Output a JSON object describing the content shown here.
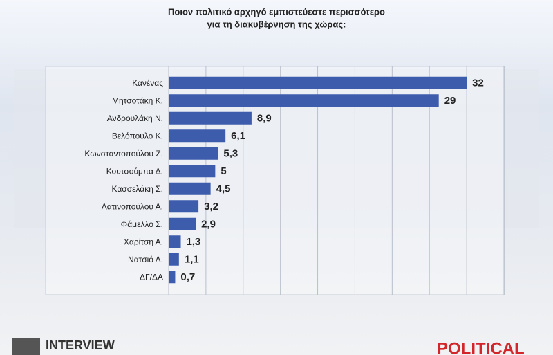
{
  "chart_data": {
    "type": "barh",
    "title": "Ποιον πολιτικό αρχηγό εμπιστεύεστε περισσότερο",
    "subtitle": "για τη διακυβέρνηση της χώρας:",
    "categories": [
      "Κανένας",
      "Μητσοτάκη Κ.",
      "Ανδρουλάκη Ν.",
      "Βελόπουλο Κ.",
      "Κωνσταντοπούλου Ζ.",
      "Κουτσούμπα Δ.",
      "Κασσελάκη Σ.",
      "Λατινοπούλου Α.",
      "Φάμελλο Σ.",
      "Χαρίτση Α.",
      "Νατσιό Δ.",
      "ΔΓ/ΔΑ"
    ],
    "values": [
      32,
      29,
      8.9,
      6.1,
      5.3,
      5,
      4.5,
      3.2,
      2.9,
      1.3,
      1.1,
      0.7
    ],
    "value_labels": [
      "32",
      "29",
      "8,9",
      "6,1",
      "5,3",
      "5",
      "4,5",
      "3,2",
      "2,9",
      "1,3",
      "1,1",
      "0,7"
    ],
    "color": "#3d5cab",
    "xlim": [
      0,
      36
    ],
    "xticks": [
      0,
      4,
      8,
      12,
      16,
      20,
      24,
      28,
      32,
      36
    ],
    "grid": true
  },
  "branding": {
    "left": "INTERVIEW",
    "right": "POLITICAL"
  }
}
